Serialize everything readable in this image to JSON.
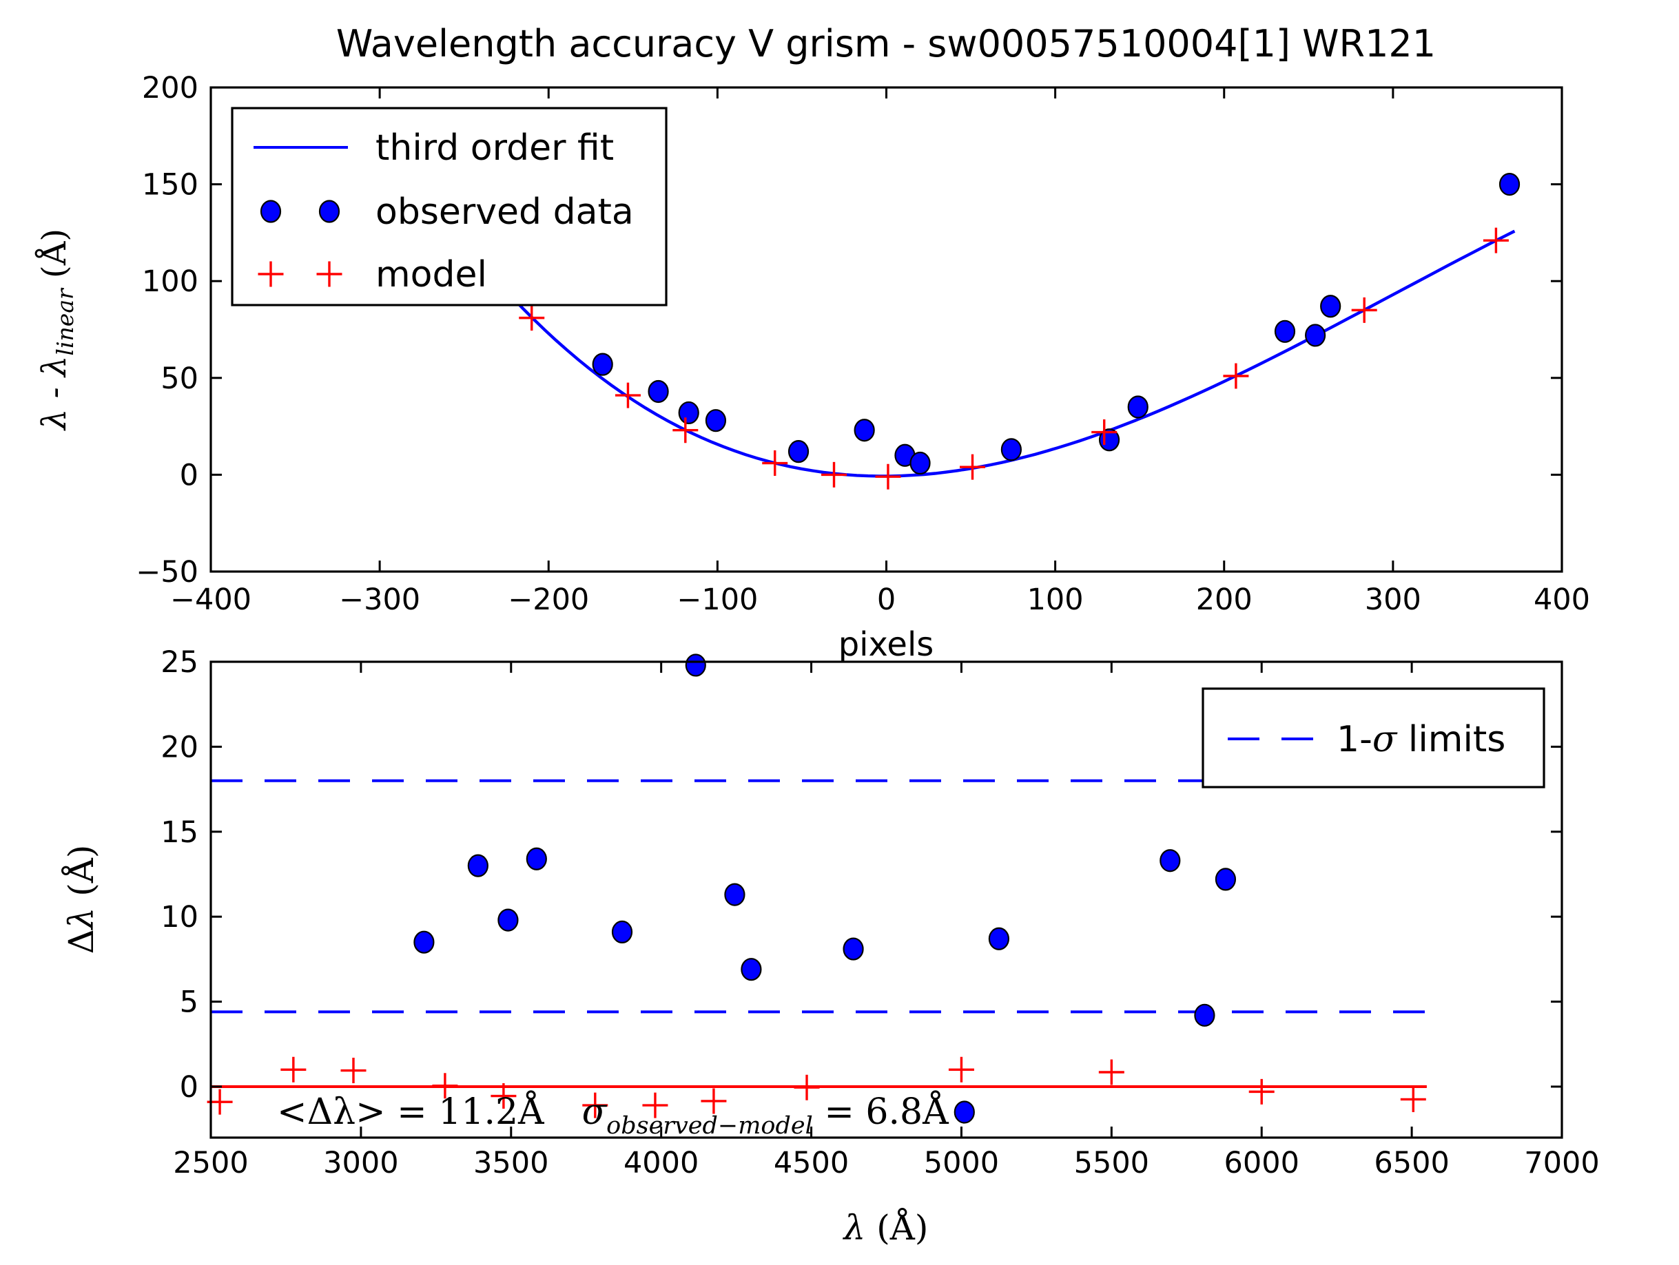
{
  "title": "Wavelength accuracy V grism - sw00057510004[1] WR121",
  "top_plot": {
    "xlabel": "pixels",
    "ylabel": {
      "main": "λ - λ",
      "sub": "linear",
      "unit": "  (Å)"
    },
    "legend": [
      {
        "label": "third order fit",
        "marker": "line",
        "color": "#0000ff"
      },
      {
        "label": "observed data",
        "marker": "circle",
        "color": "#0000ff"
      },
      {
        "label": "model",
        "marker": "plus",
        "color": "#ff0000"
      }
    ]
  },
  "bottom_plot": {
    "xlabel": {
      "lambda": "λ",
      "unit": " (Å)"
    },
    "ylabel": {
      "delta": "Δ",
      "lambda": "λ",
      "unit": " (Å)"
    },
    "legend_label": {
      "prefix": "1-",
      "sigma": "σ",
      "suffix": " limits"
    },
    "annotation": {
      "part1": "<Δλ> = 11.2Å",
      "sigma": "σ",
      "subscript": "observed−model",
      "part2": " = 6.8Å"
    }
  },
  "colors": {
    "blue": "#0000ff",
    "red": "#ff0000",
    "black": "#000000",
    "background": "#ffffff"
  },
  "chart_data": [
    {
      "id": "wavelength-accuracy-fit",
      "type": "scatter",
      "title": "Wavelength accuracy V grism - sw00057510004[1] WR121",
      "xlabel": "pixels",
      "ylabel": "λ - λ_linear (Å)",
      "xlim": [
        -400,
        400
      ],
      "ylim": [
        -50,
        200
      ],
      "xticks": [
        -400,
        -300,
        -200,
        -100,
        0,
        100,
        200,
        300,
        400
      ],
      "xtick_labels": [
        "−400",
        "−300",
        "−200",
        "−100",
        "0",
        "100",
        "200",
        "300",
        "400"
      ],
      "yticks": [
        -50,
        0,
        50,
        100,
        150,
        200
      ],
      "ytick_labels": [
        "−50",
        "0",
        "50",
        "100",
        "150",
        "200"
      ],
      "grid": false,
      "legend_position": "upper left",
      "series": [
        {
          "name": "third order fit",
          "type": "line",
          "color": "#0000ff",
          "x_range": [
            -222,
            372
          ],
          "derived_from": "model"
        },
        {
          "name": "observed data",
          "type": "scatter",
          "marker": "circle",
          "color": "#0000ff",
          "points": [
            [
              -168,
              57
            ],
            [
              -135,
              43
            ],
            [
              -117,
              32
            ],
            [
              -101,
              28
            ],
            [
              -52,
              12
            ],
            [
              -13,
              23
            ],
            [
              11,
              10
            ],
            [
              20,
              6
            ],
            [
              74,
              13
            ],
            [
              132,
              18
            ],
            [
              149,
              35
            ],
            [
              236,
              74
            ],
            [
              254,
              72
            ],
            [
              263,
              87
            ],
            [
              369,
              150
            ]
          ]
        },
        {
          "name": "model",
          "type": "scatter",
          "marker": "plus",
          "color": "#ff0000",
          "points": [
            [
              -210,
              81
            ],
            [
              -153,
              41
            ],
            [
              -119,
              23
            ],
            [
              -66,
              6
            ],
            [
              -31,
              0
            ],
            [
              1,
              -1
            ],
            [
              51,
              4
            ],
            [
              129,
              22
            ],
            [
              207,
              51
            ],
            [
              283,
              85
            ],
            [
              361,
              121
            ]
          ]
        }
      ]
    },
    {
      "id": "residuals-vs-wavelength",
      "type": "scatter",
      "xlabel": "λ (Å)",
      "ylabel": "Δλ (Å)",
      "xlim": [
        2500,
        7000
      ],
      "ylim": [
        -3,
        25
      ],
      "xticks": [
        2500,
        3000,
        3500,
        4000,
        4500,
        5000,
        5500,
        6000,
        6500,
        7000
      ],
      "xtick_labels": [
        "2500",
        "3000",
        "3500",
        "4000",
        "4500",
        "5000",
        "5500",
        "6000",
        "6500",
        "7000"
      ],
      "yticks": [
        0,
        5,
        10,
        15,
        20,
        25
      ],
      "ytick_labels": [
        "0",
        "5",
        "10",
        "15",
        "20",
        "25"
      ],
      "grid": false,
      "legend_position": "upper right",
      "series": [
        {
          "name": "observed data",
          "type": "scatter",
          "marker": "circle",
          "color": "#0000ff",
          "points": [
            [
              3210,
              8.5
            ],
            [
              3390,
              13.0
            ],
            [
              3490,
              9.8
            ],
            [
              3585,
              13.4
            ],
            [
              3870,
              9.1
            ],
            [
              4115,
              24.8
            ],
            [
              4245,
              11.3
            ],
            [
              4300,
              6.9
            ],
            [
              4640,
              8.1
            ],
            [
              5010,
              -1.5
            ],
            [
              5125,
              8.7
            ],
            [
              5695,
              13.3
            ],
            [
              5810,
              4.2
            ],
            [
              5880,
              12.2
            ]
          ]
        },
        {
          "name": "model",
          "type": "scatter",
          "marker": "plus",
          "color": "#ff0000",
          "points": [
            [
              2530,
              -0.9
            ],
            [
              2775,
              1.0
            ],
            [
              2975,
              0.95
            ],
            [
              3280,
              0.05
            ],
            [
              3475,
              -0.55
            ],
            [
              3780,
              -1.1
            ],
            [
              3980,
              -1.1
            ],
            [
              4175,
              -0.85
            ],
            [
              4485,
              -0.05
            ],
            [
              5000,
              1.0
            ],
            [
              5500,
              0.85
            ],
            [
              6000,
              -0.3
            ],
            [
              6505,
              -0.75
            ]
          ]
        },
        {
          "name": "1-σ limits",
          "type": "hlines",
          "style": "dashed",
          "color": "#0000ff",
          "y_values": [
            4.4,
            18.0
          ],
          "x_range": [
            2500,
            6550
          ]
        },
        {
          "name": "zero line",
          "type": "hline",
          "style": "solid",
          "color": "#ff0000",
          "y": 0,
          "x_range": [
            2500,
            6550
          ]
        }
      ],
      "stats": {
        "mean_delta_lambda_A": 11.2,
        "sigma_observed_model_A": 6.8,
        "one_sigma_limits": [
          4.4,
          18.0
        ]
      }
    }
  ]
}
